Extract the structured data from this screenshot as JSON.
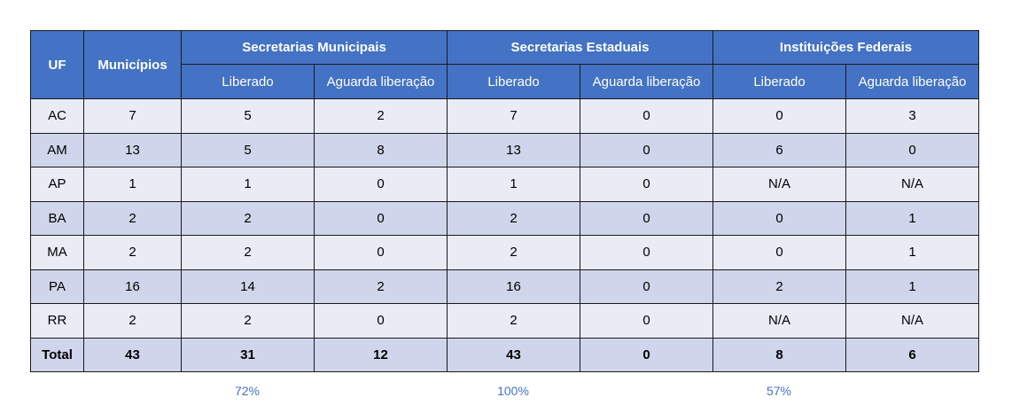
{
  "table": {
    "headers": {
      "uf": "UF",
      "municipios": "Municípios",
      "groups": [
        "Secretarias Municipais",
        "Secretarias Estaduais",
        "Instituições Federais"
      ],
      "sub": [
        "Liberado",
        "Aguarda liberação",
        "Liberado",
        "Aguarda liberação",
        "Liberado",
        "Aguarda liberação"
      ]
    },
    "rows": [
      [
        "AC",
        "7",
        "5",
        "2",
        "7",
        "0",
        "0",
        "3"
      ],
      [
        "AM",
        "13",
        "5",
        "8",
        "13",
        "0",
        "6",
        "0"
      ],
      [
        "AP",
        "1",
        "1",
        "0",
        "1",
        "0",
        "N/A",
        "N/A"
      ],
      [
        "BA",
        "2",
        "2",
        "0",
        "2",
        "0",
        "0",
        "1"
      ],
      [
        "MA",
        "2",
        "2",
        "0",
        "2",
        "0",
        "0",
        "1"
      ],
      [
        "PA",
        "16",
        "14",
        "2",
        "16",
        "0",
        "2",
        "1"
      ],
      [
        "RR",
        "2",
        "2",
        "0",
        "2",
        "0",
        "N/A",
        "N/A"
      ]
    ],
    "total": [
      "Total",
      "43",
      "31",
      "12",
      "43",
      "0",
      "8",
      "6"
    ]
  },
  "percentages": [
    "72%",
    "100%",
    "57%"
  ],
  "colors": {
    "header_bg": "#4472c4",
    "header_text": "#ffffff",
    "row_light": "#e9ebf5",
    "row_dark": "#cfd5ea",
    "percent_text": "#4472c4"
  }
}
